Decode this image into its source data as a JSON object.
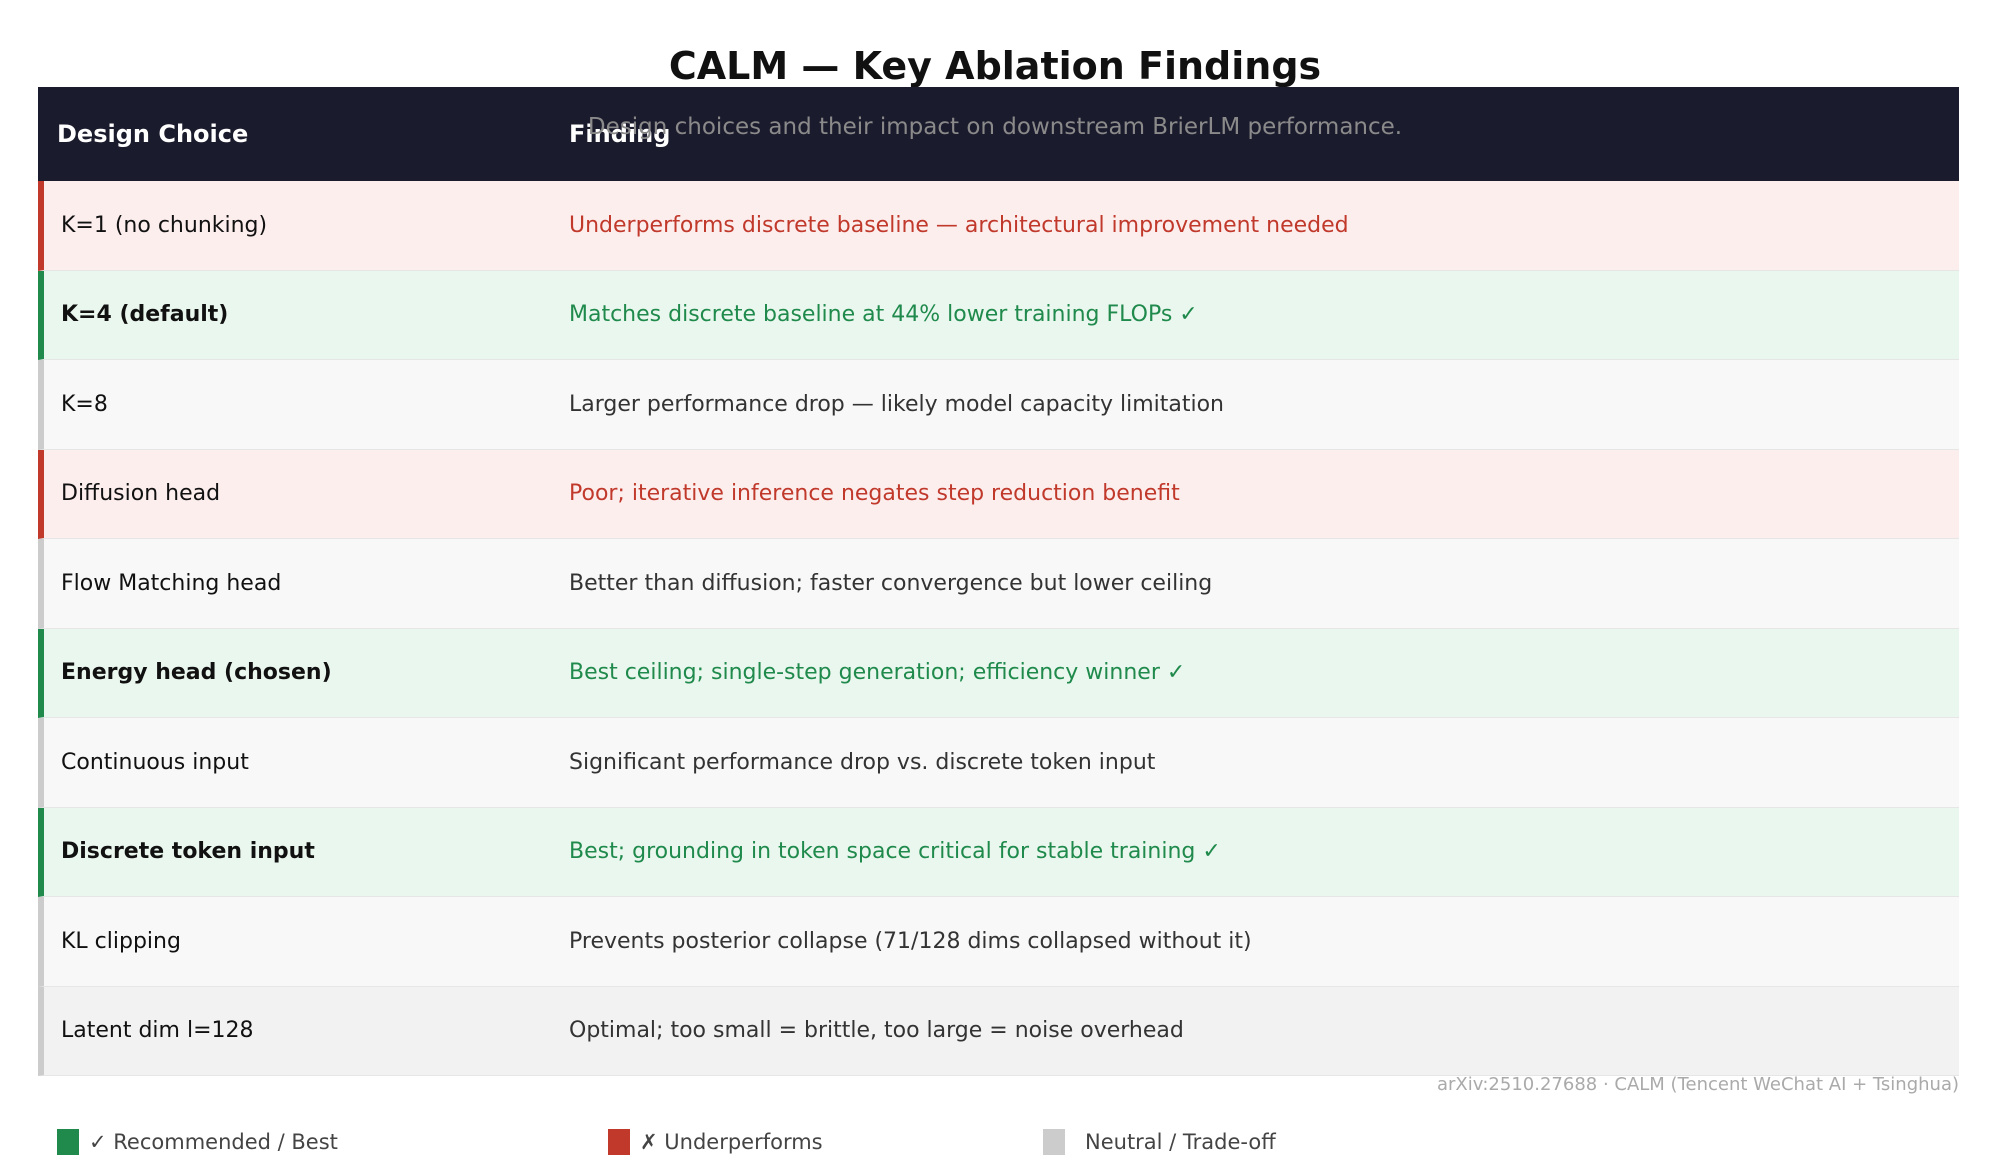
{
  "title": "CALM — Key Ablation Findings",
  "subtitle": "Design choices and their impact on downstream BrierLM performance.",
  "table": {
    "headers": [
      "Design Choice",
      "Finding"
    ],
    "rows": [
      {
        "choice": "K=1 (no chunking)",
        "finding": "Underperforms discrete baseline — architectural improvement needed",
        "status": "underperforms"
      },
      {
        "choice": "K=4 (default)",
        "finding": "Matches discrete baseline at 44% lower training FLOPs ✓",
        "status": "recommended"
      },
      {
        "choice": "K=8",
        "finding": "Larger performance drop — likely model capacity limitation",
        "status": "neutral"
      },
      {
        "choice": "Diffusion head",
        "finding": "Poor; iterative inference negates step reduction benefit",
        "status": "underperforms"
      },
      {
        "choice": "Flow Matching head",
        "finding": "Better than diffusion; faster convergence but lower ceiling",
        "status": "neutral"
      },
      {
        "choice": "Energy head  (chosen)",
        "finding": "Best ceiling; single-step generation; efficiency winner ✓",
        "status": "recommended"
      },
      {
        "choice": "Continuous input",
        "finding": "Significant performance drop vs. discrete token input",
        "status": "neutral"
      },
      {
        "choice": "Discrete token input",
        "finding": "Best; grounding in token space critical for stable training ✓",
        "status": "recommended"
      },
      {
        "choice": "KL clipping",
        "finding": "Prevents posterior collapse (71/128 dims collapsed without it)",
        "status": "neutral"
      },
      {
        "choice": "Latent dim l=128",
        "finding": "Optimal; too small = brittle, too large = noise overhead",
        "status": "neutral"
      }
    ]
  },
  "footer": "arXiv:2510.27688  ·  CALM (Tencent WeChat AI + Tsinghua)",
  "legend": [
    {
      "label": "✓ Recommended / Best",
      "color": "#1f8a4c"
    },
    {
      "label": "✗ Underperforms",
      "color": "#c0392b"
    },
    {
      "label": "Neutral / Trade-off",
      "color": "#cccccc"
    }
  ]
}
